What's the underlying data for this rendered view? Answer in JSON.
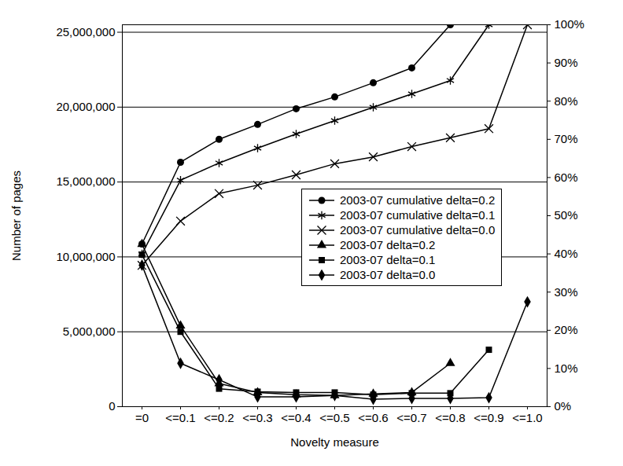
{
  "chart_data": {
    "type": "line",
    "x_label": "Novelty measure",
    "y_label": "Number of pages",
    "categories": [
      "=0",
      "<=0.1",
      "<=0.2",
      "<=0.3",
      "<=0.4",
      "<=0.5",
      "<=0.6",
      "<=0.7",
      "<=0.8",
      "<=0.9",
      "<=1.0"
    ],
    "ylim": [
      0,
      25500000
    ],
    "yticks": [
      0,
      {
        "value": 5000000,
        "label": "5,000,000"
      },
      {
        "value": 10000000,
        "label": "10,000,000"
      },
      {
        "value": 15000000,
        "label": "15,000,000"
      },
      {
        "value": 20000000,
        "label": "20,000,000"
      },
      {
        "value": 25000000,
        "label": "25,000,000"
      }
    ],
    "y2lim": [
      0,
      100
    ],
    "y2ticks": [
      {
        "value": 0,
        "label": "0%"
      },
      {
        "value": 10,
        "label": "10%"
      },
      {
        "value": 20,
        "label": "20%"
      },
      {
        "value": 30,
        "label": "30%"
      },
      {
        "value": 40,
        "label": "40%"
      },
      {
        "value": 50,
        "label": "50%"
      },
      {
        "value": 60,
        "label": "60%"
      },
      {
        "value": 70,
        "label": "70%"
      },
      {
        "value": 80,
        "label": "80%"
      },
      {
        "value": 90,
        "label": "90%"
      },
      {
        "value": 100,
        "label": "100%"
      }
    ],
    "grid": true,
    "legend": "right",
    "series": [
      {
        "name": "2003-07 cumulative delta=0.2",
        "color": "#000000",
        "marker": "circle",
        "axis": "y2",
        "values": [
          42.6,
          64.0,
          70.0,
          73.9,
          78.0,
          81.1,
          84.8,
          88.7,
          100,
          null,
          null
        ]
      },
      {
        "name": "2003-07 cumulative delta=0.1",
        "color": "#000000",
        "marker": "asterisk",
        "axis": "y2",
        "values": [
          40.0,
          59.3,
          63.8,
          67.7,
          71.4,
          74.9,
          78.4,
          81.9,
          85.4,
          100,
          null
        ]
      },
      {
        "name": "2003-07 cumulative delta=0.0",
        "color": "#000000",
        "marker": "times",
        "axis": "y2",
        "values": [
          37.0,
          48.6,
          55.8,
          58.0,
          60.7,
          63.6,
          65.4,
          68.1,
          70.4,
          72.8,
          100
        ]
      },
      {
        "name": "2003-07 delta=0.2",
        "color": "#000000",
        "marker": "triangle",
        "values": [
          10850000,
          5400000,
          1550000,
          950000,
          800000,
          750000,
          850000,
          950000,
          2900000,
          null,
          null
        ]
      },
      {
        "name": "2003-07 delta=0.1",
        "color": "#000000",
        "marker": "square",
        "values": [
          10150000,
          5000000,
          1200000,
          1000000,
          950000,
          950000,
          800000,
          900000,
          900000,
          3800000,
          null
        ]
      },
      {
        "name": "2003-07 delta=0.0",
        "color": "#000000",
        "marker": "diamond",
        "values": [
          9450000,
          2900000,
          1800000,
          650000,
          650000,
          750000,
          500000,
          550000,
          550000,
          600000,
          7000000
        ]
      }
    ]
  }
}
